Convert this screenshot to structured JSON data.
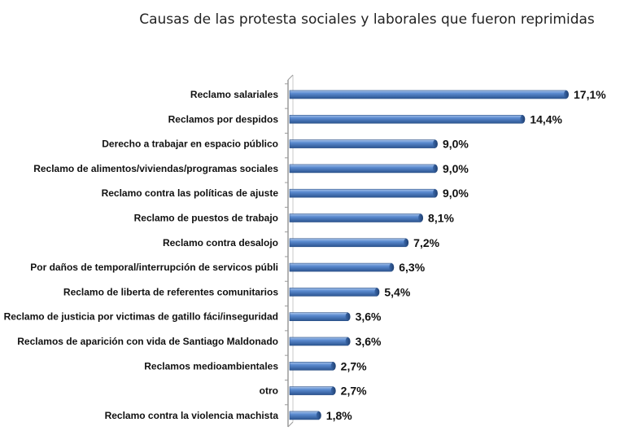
{
  "chart_data": {
    "type": "bar",
    "orientation": "horizontal",
    "title": "Causas de las protesta sociales y laborales que fueron reprimidas",
    "categories": [
      "Reclamo salariales",
      "Reclamos por despidos",
      "Derecho a trabajar en espacio público",
      "Reclamo de alimentos/viviendas/programas sociales",
      "Reclamo contra las políticas de ajuste",
      "Reclamo de puestos de trabajo",
      "Reclamo contra desalojo",
      "Por daños de temporal/interrupción de servicos públi",
      "Reclamo de liberta de referentes comunitarios",
      "Reclamo de justicia por victimas de gatillo fáci/inseguridad",
      "Reclamos de aparición con vida de Santiago Maldonado",
      "Reclamos medioambientales",
      "otro",
      "Reclamo contra la violencia machista"
    ],
    "values": [
      17.1,
      14.4,
      9.0,
      9.0,
      9.0,
      8.1,
      7.2,
      6.3,
      5.4,
      3.6,
      3.6,
      2.7,
      2.7,
      1.8
    ],
    "value_labels": [
      "17,1%",
      "14,4%",
      "9,0%",
      "9,0%",
      "9,0%",
      "8,1%",
      "7,2%",
      "6,3%",
      "5,4%",
      "3,6%",
      "3,6%",
      "2,7%",
      "2,7%",
      "1,8%"
    ],
    "xlim": [
      0,
      17.1
    ],
    "grid": false,
    "legend": "none",
    "bar_color": "#4f81bd"
  }
}
